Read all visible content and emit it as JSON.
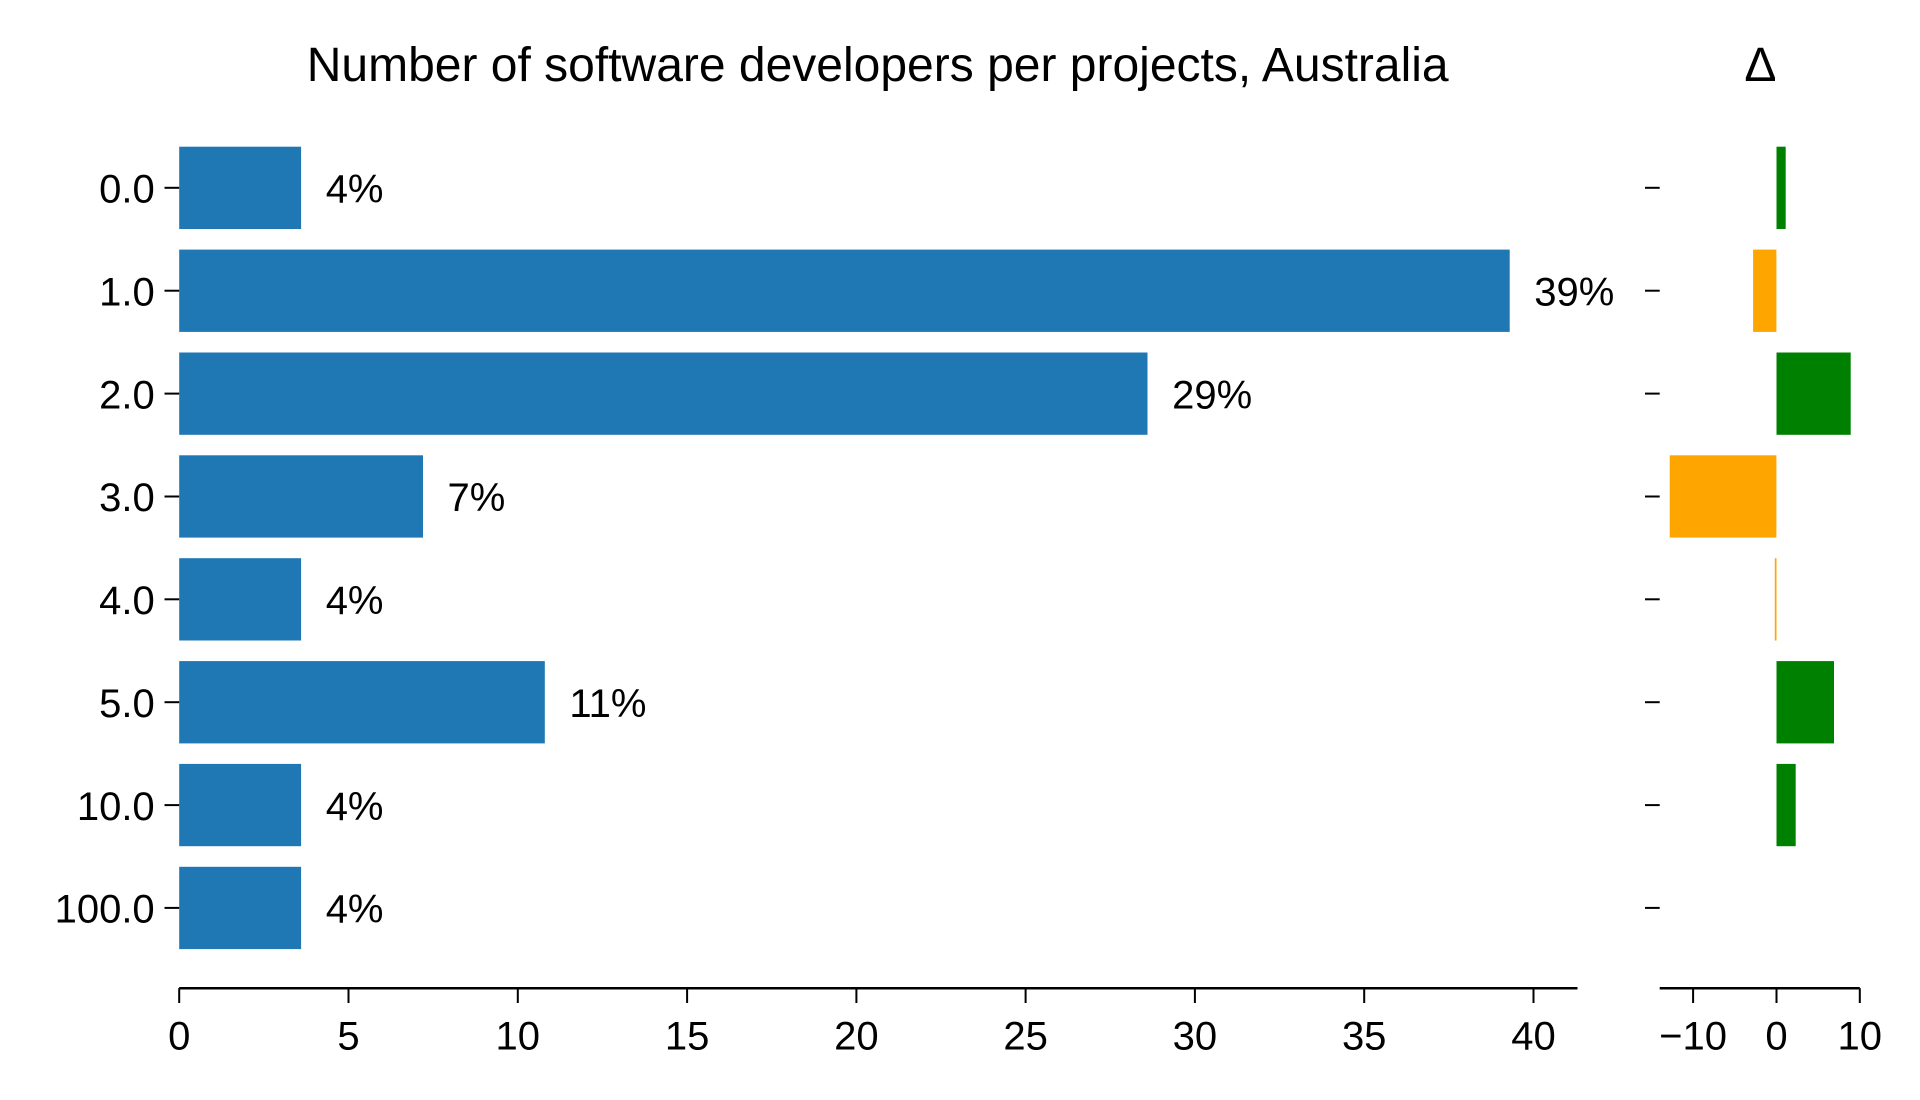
{
  "chart_data": [
    {
      "type": "bar",
      "orientation": "horizontal",
      "title": "Number of software developers per projects, Australia",
      "categories": [
        "0.0",
        "1.0",
        "2.0",
        "3.0",
        "4.0",
        "5.0",
        "10.0",
        "100.0"
      ],
      "values": [
        3.6,
        39.3,
        28.6,
        7.2,
        3.6,
        10.8,
        3.6,
        3.6
      ],
      "data_labels": [
        "4%",
        "39%",
        "29%",
        "7%",
        "4%",
        "11%",
        "4%",
        "4%"
      ],
      "xlim": [
        0,
        41.3
      ],
      "xticks": [
        "0",
        "5",
        "10",
        "15",
        "20",
        "25",
        "30",
        "35",
        "40"
      ],
      "xlabel": "",
      "ylabel": "",
      "grid": false,
      "bar_color": "#1f77b4"
    },
    {
      "type": "bar",
      "orientation": "horizontal",
      "title": "Δ",
      "categories": [
        "0.0",
        "1.0",
        "2.0",
        "3.0",
        "4.0",
        "5.0",
        "10.0",
        "100.0"
      ],
      "values": [
        1.1,
        -2.8,
        8.9,
        -12.8,
        -0.2,
        6.9,
        2.3,
        0
      ],
      "xlim": [
        -14,
        10
      ],
      "xticks": [
        "−10",
        "0",
        "10"
      ],
      "xlabel": "",
      "ylabel": "",
      "grid": false,
      "positive_color": "#008000",
      "negative_color": "#ffa500"
    }
  ]
}
